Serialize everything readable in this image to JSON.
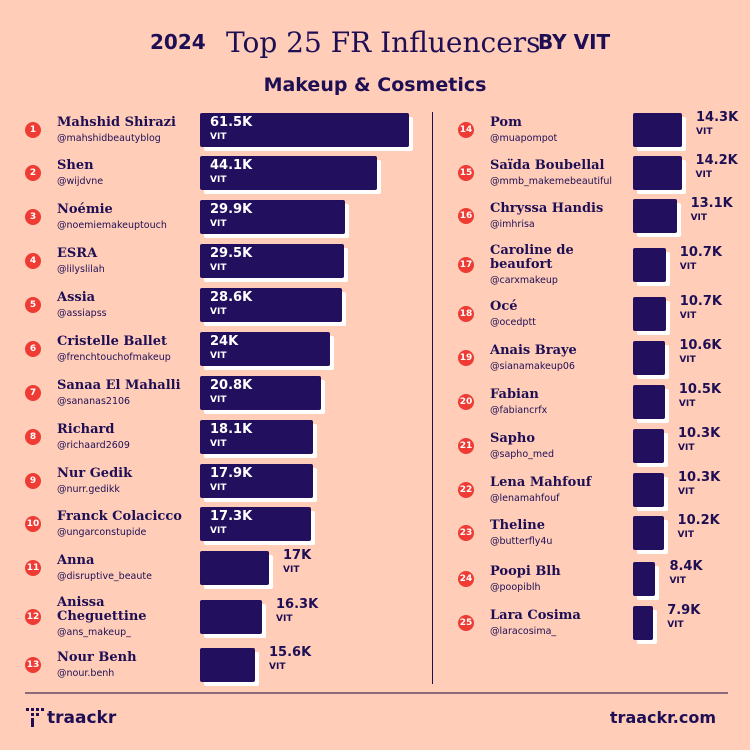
{
  "header": {
    "year": "2024",
    "title": "Top 25 FR Influencers",
    "by": "BY VIT",
    "subtitle": "Makeup & Cosmetics"
  },
  "footer": {
    "logo": "traackr",
    "site": "traackr.com"
  },
  "colors": {
    "background": "#ffcdb8",
    "bar": "#22105e",
    "rank": "#ee3b34",
    "text": "#1e0f55"
  },
  "chart_data": {
    "type": "bar",
    "orientation": "horizontal",
    "unit": "VIT",
    "categories": [
      "Mahshid Shirazi",
      "Shen",
      "Noémie",
      "ESRA",
      "Assia",
      "Cristelle Ballet",
      "Sanaa El Mahalli",
      "Richard",
      "Nur Gedik",
      "Franck Colacicco",
      "Anna",
      "Anissa Cheguettine",
      "Nour Benh",
      "Pom",
      "Saïda Boubellal",
      "Chryssa Handis",
      "Caroline de beaufort",
      "Océ",
      "Anais Braye",
      "Fabian",
      "Sapho",
      "Lena Mahfouf",
      "Theline",
      "Poopi Blh",
      "Lara Cosima"
    ],
    "handles": [
      "@mahshidbeautyblog",
      "@wijdvne",
      "@noemiemakeuptouch",
      "@lilyslilah",
      "@assiapss",
      "@frenchtouchofmakeup",
      "@sananas2106",
      "@richaard2609",
      "@nurr.gedikk",
      "@ungarconstupide",
      "@disruptive_beaute",
      "@ans_makeup_",
      "@nour.benh",
      "@muapompot",
      "@mmb_makemebeautiful",
      "@imhrisa",
      "@carxmakeup",
      "@ocedptt",
      "@sianamakeup06",
      "@fabiancrfx",
      "@sapho_med",
      "@lenamahfouf",
      "@butterfly4u",
      "@poopiblh",
      "@laracosima_"
    ],
    "labels": [
      "61.5K",
      "44.1K",
      "29.9K",
      "29.5K",
      "28.6K",
      "24K",
      "20.8K",
      "18.1K",
      "17.9K",
      "17.3K",
      "17K",
      "16.3K",
      "15.6K",
      "14.3K",
      "14.2K",
      "13.1K",
      "10.7K",
      "10.7K",
      "10.6K",
      "10.5K",
      "10.3K",
      "10.3K",
      "10.2K",
      "8.4K",
      "7.9K"
    ],
    "values": [
      61500,
      44100,
      29900,
      29500,
      28600,
      24000,
      20800,
      18100,
      17900,
      17300,
      17000,
      16300,
      15600,
      14300,
      14200,
      13100,
      10700,
      10700,
      10600,
      10500,
      10300,
      10300,
      10200,
      8400,
      7900
    ]
  }
}
